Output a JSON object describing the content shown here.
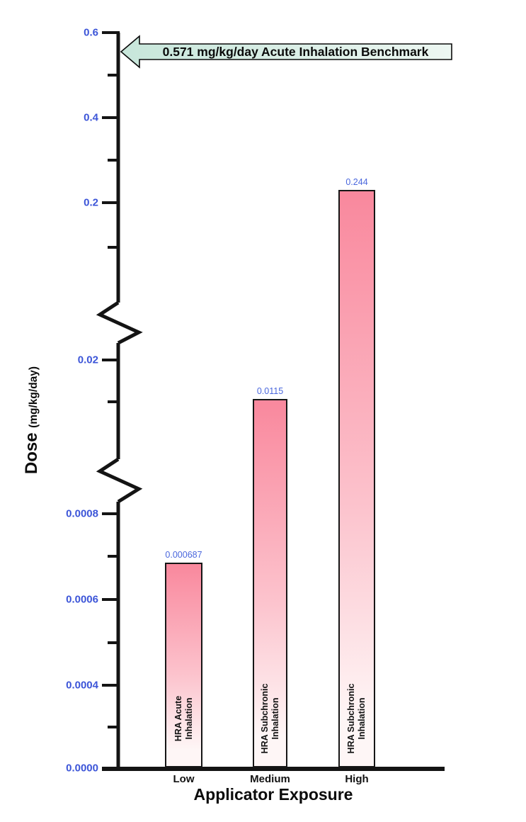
{
  "chart_data": {
    "type": "bar",
    "title": "",
    "xlabel": "Applicator Exposure",
    "ylabel": "Dose (mg/kg/day)",
    "ylabel_parts": {
      "main": "Dose",
      "unit": "(mg/kg/day)"
    },
    "categories": [
      "Low",
      "Medium",
      "High"
    ],
    "values": [
      0.000687,
      0.0115,
      0.244
    ],
    "value_labels": [
      "0.000687",
      "0.0115",
      "0.244"
    ],
    "bar_annotations": [
      [
        "HRA Acute",
        "Inhalation"
      ],
      [
        "HRA Subchronic",
        "Inhalation"
      ],
      [
        "HRA Subchronic",
        "Inhalation"
      ]
    ],
    "benchmark": {
      "value": 0.571,
      "label": "0.571 mg/kg/day Acute Inhalation Benchmark"
    },
    "y_axis": {
      "broken": true,
      "major_tick_labels": [
        "0.6",
        "0.4",
        "0.2",
        "0.02",
        "0.0008",
        "0.0006",
        "0.0004",
        "0.0000"
      ],
      "major_tick_values": [
        0.6,
        0.4,
        0.2,
        0.02,
        0.0008,
        0.0006,
        0.0004,
        0.0
      ],
      "minor_tick_values": [
        0.5,
        0.3,
        0.1,
        0.01,
        0.0007,
        0.0005,
        0.0003
      ],
      "breaks": [
        {
          "between": [
            0.1,
            0.02
          ]
        },
        {
          "between": [
            0.01,
            0.0008
          ]
        }
      ]
    },
    "colors": {
      "tick_label": "#3c55d8",
      "value_label": "#4a67dd",
      "bar_top": "#f9889d",
      "bar_mid": "#fcc3cd",
      "bar_bottom": "#fef6f6",
      "arrow_fill_left": "#c7e6da",
      "arrow_fill_right": "#edf7f2",
      "axis": "#141414"
    }
  }
}
